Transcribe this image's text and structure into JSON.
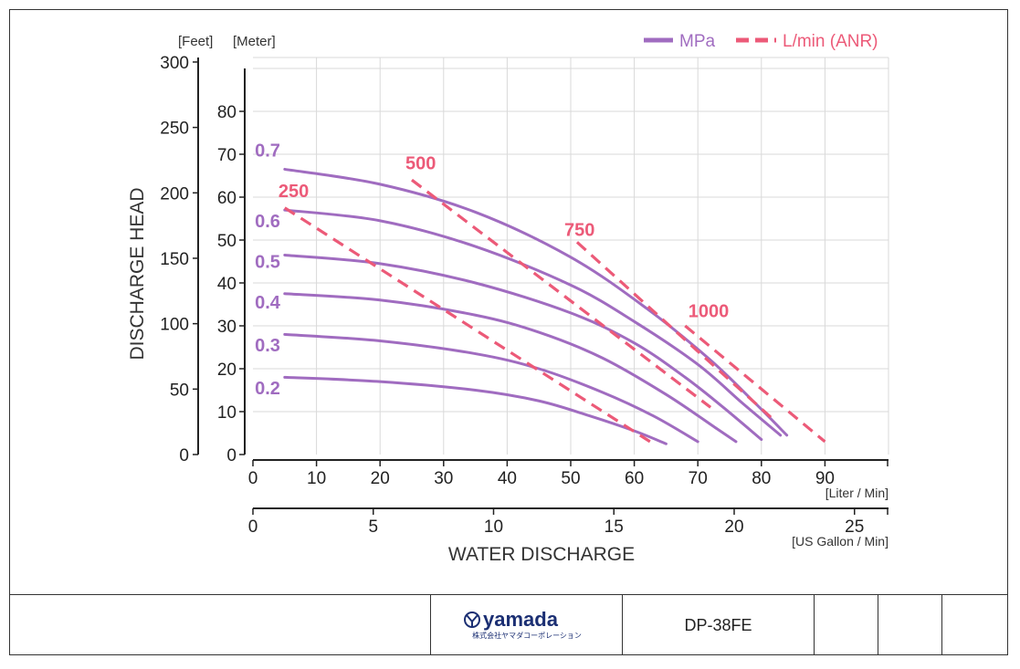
{
  "chart_data": {
    "type": "line",
    "ylabel": "DISCHARGE HEAD",
    "xlabel": "WATER DISCHARGE",
    "y_units": [
      "[Feet]",
      "[Meter]"
    ],
    "x_units": [
      "[Liter / Min]",
      "[US Gallon / Min]"
    ],
    "x_ticks_liter": [
      0,
      10,
      20,
      30,
      40,
      50,
      60,
      70,
      80,
      90
    ],
    "x_ticks_gallon": [
      0,
      5,
      10,
      15,
      20,
      25
    ],
    "y_ticks_meter": [
      0,
      10,
      20,
      30,
      40,
      50,
      60,
      70,
      80
    ],
    "y_ticks_feet": [
      0,
      50,
      100,
      150,
      200,
      250,
      300
    ],
    "xlim": [
      0,
      100
    ],
    "ylim_meter": [
      0,
      91.4
    ],
    "grid": true,
    "legend_position": "top-right",
    "legend": [
      {
        "label": "MPa",
        "style": "solid",
        "color": "#a06cc0"
      },
      {
        "label": "L/min (ANR)",
        "style": "dashed",
        "color": "#ec5a78"
      }
    ],
    "series": [
      {
        "name": "0.7",
        "label": "0.7",
        "kind": "pressure",
        "points": [
          [
            5,
            66.5
          ],
          [
            20,
            63
          ],
          [
            35,
            56.5
          ],
          [
            50,
            46
          ],
          [
            62,
            34
          ],
          [
            72,
            22
          ],
          [
            79,
            12
          ],
          [
            84,
            4.5
          ]
        ]
      },
      {
        "name": "0.6",
        "label": "0.6",
        "kind": "pressure",
        "points": [
          [
            5,
            57
          ],
          [
            20,
            54.5
          ],
          [
            35,
            48.5
          ],
          [
            50,
            39.5
          ],
          [
            60,
            31
          ],
          [
            70,
            21
          ],
          [
            77,
            12
          ],
          [
            83,
            4.5
          ]
        ]
      },
      {
        "name": "0.5",
        "label": "0.5",
        "kind": "pressure",
        "points": [
          [
            5,
            46.5
          ],
          [
            20,
            44.5
          ],
          [
            35,
            40
          ],
          [
            50,
            33
          ],
          [
            60,
            26
          ],
          [
            68,
            18
          ],
          [
            74,
            11
          ],
          [
            80,
            3.5
          ]
        ]
      },
      {
        "name": "0.4",
        "label": "0.4",
        "kind": "pressure",
        "points": [
          [
            5,
            37.5
          ],
          [
            20,
            36
          ],
          [
            35,
            32.5
          ],
          [
            45,
            28.5
          ],
          [
            55,
            22.5
          ],
          [
            65,
            14
          ],
          [
            73,
            6
          ],
          [
            76,
            3
          ]
        ]
      },
      {
        "name": "0.3",
        "label": "0.3",
        "kind": "pressure",
        "points": [
          [
            5,
            28
          ],
          [
            20,
            26.5
          ],
          [
            35,
            23.5
          ],
          [
            45,
            20
          ],
          [
            55,
            14.5
          ],
          [
            63,
            9
          ],
          [
            70,
            3
          ]
        ]
      },
      {
        "name": "0.2",
        "label": "0.2",
        "kind": "pressure",
        "points": [
          [
            5,
            18
          ],
          [
            20,
            17
          ],
          [
            35,
            15
          ],
          [
            45,
            12.5
          ],
          [
            53,
            9
          ],
          [
            60,
            5.5
          ],
          [
            65,
            2.5
          ]
        ]
      },
      {
        "name": "250",
        "label": "250",
        "kind": "air",
        "points": [
          [
            5,
            57.5
          ],
          [
            63,
            2.5
          ]
        ]
      },
      {
        "name": "500",
        "label": "500",
        "kind": "air",
        "points": [
          [
            25,
            64
          ],
          [
            72,
            11
          ]
        ]
      },
      {
        "name": "750",
        "label": "750",
        "kind": "air",
        "points": [
          [
            51,
            49.5
          ],
          [
            82,
            8
          ]
        ]
      },
      {
        "name": "1000",
        "label": "1000",
        "kind": "air",
        "points": [
          [
            68,
            30
          ],
          [
            90,
            3
          ]
        ]
      }
    ],
    "series_labels": [
      {
        "text": "0.7",
        "x": 0.3,
        "y": 69.5
      },
      {
        "text": "0.6",
        "x": 0.3,
        "y": 53
      },
      {
        "text": "0.5",
        "x": 0.3,
        "y": 43.5
      },
      {
        "text": "0.4",
        "x": 0.3,
        "y": 34
      },
      {
        "text": "0.3",
        "x": 0.3,
        "y": 24
      },
      {
        "text": "0.2",
        "x": 0.3,
        "y": 14
      },
      {
        "text": "250",
        "x": 4,
        "y": 60
      },
      {
        "text": "500",
        "x": 24,
        "y": 66.5
      },
      {
        "text": "750",
        "x": 49,
        "y": 51
      },
      {
        "text": "1000",
        "x": 68.5,
        "y": 32
      }
    ]
  },
  "footer": {
    "logo_text": "yamada",
    "logo_sub": "株式会社ヤマダコーポレーション",
    "model": "DP-38FE"
  },
  "colors": {
    "pressure": "#a06cc0",
    "air": "#ec5a78",
    "grid": "#d9d9d9",
    "logo": "#1b2f73"
  }
}
